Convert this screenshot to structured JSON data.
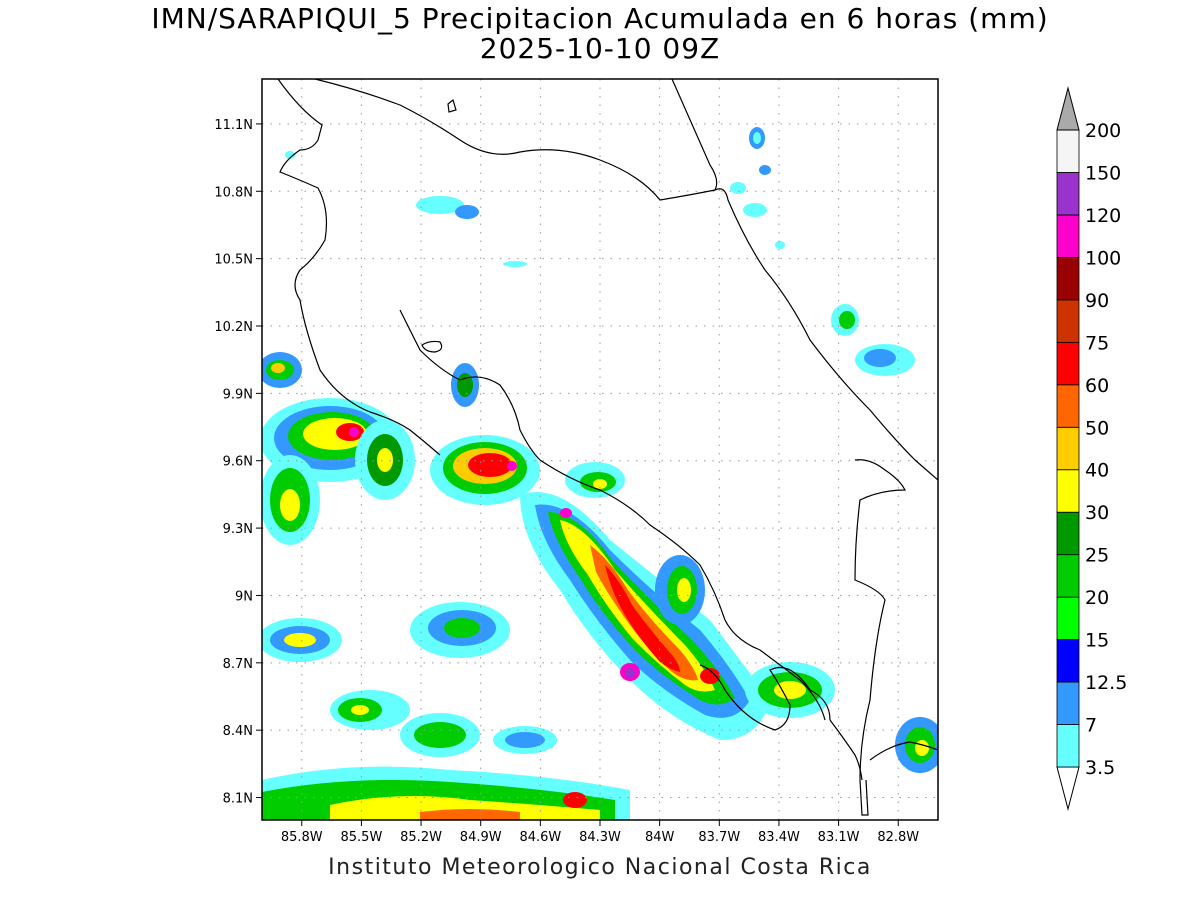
{
  "map": {
    "title": "IMN/SARAPIQUI_5 Precipitacion Acumulada en 6 horas (mm)",
    "subtitle": "2025-10-10 09Z",
    "credit": "Instituto Meteorologico Nacional Costa Rica",
    "lat_labels": [
      "11.1N",
      "10.8N",
      "10.5N",
      "10.2N",
      "9.9N",
      "9.6N",
      "9.3N",
      "9N",
      "8.7N",
      "8.4N",
      "8.1N"
    ],
    "lon_labels": [
      "85.8W",
      "85.5W",
      "85.2W",
      "84.9W",
      "84.6W",
      "84.3W",
      "84W",
      "83.7W",
      "83.4W",
      "83.1W",
      "82.8W"
    ],
    "extent": {
      "lon_min": -86.0,
      "lon_max": -82.6,
      "lat_min": 8.0,
      "lat_max": 11.3
    },
    "grid": true
  },
  "colorbar": {
    "levels": [
      "3.5",
      "7",
      "12.5",
      "15",
      "20",
      "25",
      "30",
      "40",
      "50",
      "60",
      "75",
      "90",
      "100",
      "120",
      "150",
      "200"
    ],
    "colors": [
      "#66ffff",
      "#3399ff",
      "#0000ff",
      "#00ff00",
      "#00cc00",
      "#009900",
      "#ffff00",
      "#ffcc00",
      "#ff6600",
      "#ff0000",
      "#cc3300",
      "#990000",
      "#ff00cc",
      "#9933cc",
      "#f5f5f5",
      "#aaaaaa"
    ]
  }
}
